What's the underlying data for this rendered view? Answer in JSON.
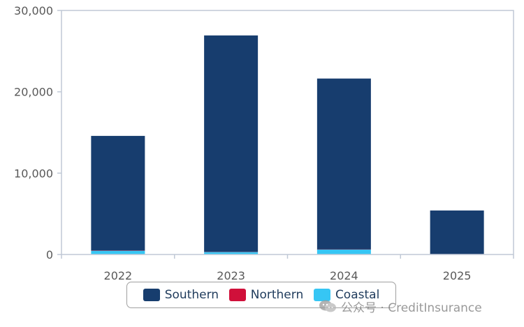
{
  "colors": {
    "Southern": "#173d6e",
    "Northern": "#d0103a",
    "Coastal": "#36c6f4",
    "axis": "#c0c9d6",
    "grid": "#dfe4ea"
  },
  "chart_data": {
    "type": "bar",
    "stacked": true,
    "categories": [
      "2022",
      "2023",
      "2024",
      "2025"
    ],
    "series": [
      {
        "name": "Coastal",
        "values": [
          450,
          300,
          600,
          50
        ]
      },
      {
        "name": "Northern",
        "values": [
          30,
          30,
          30,
          10
        ]
      },
      {
        "name": "Southern",
        "values": [
          14100,
          26600,
          21000,
          5350
        ]
      }
    ],
    "ylim": [
      0,
      30000
    ],
    "yticks": [
      "0",
      "10,000",
      "20,000",
      "30,000"
    ],
    "ytick_values": [
      0,
      10000,
      20000,
      30000
    ],
    "legend_placement": "bottom",
    "grid": false
  },
  "legend": [
    {
      "name": "Southern",
      "color": "#173d6e"
    },
    {
      "name": "Northern",
      "color": "#d0103a"
    },
    {
      "name": "Coastal",
      "color": "#36c6f4"
    }
  ],
  "watermark": {
    "text": "公众号 · CreditInsurance",
    "icon": "wechat-icon"
  }
}
